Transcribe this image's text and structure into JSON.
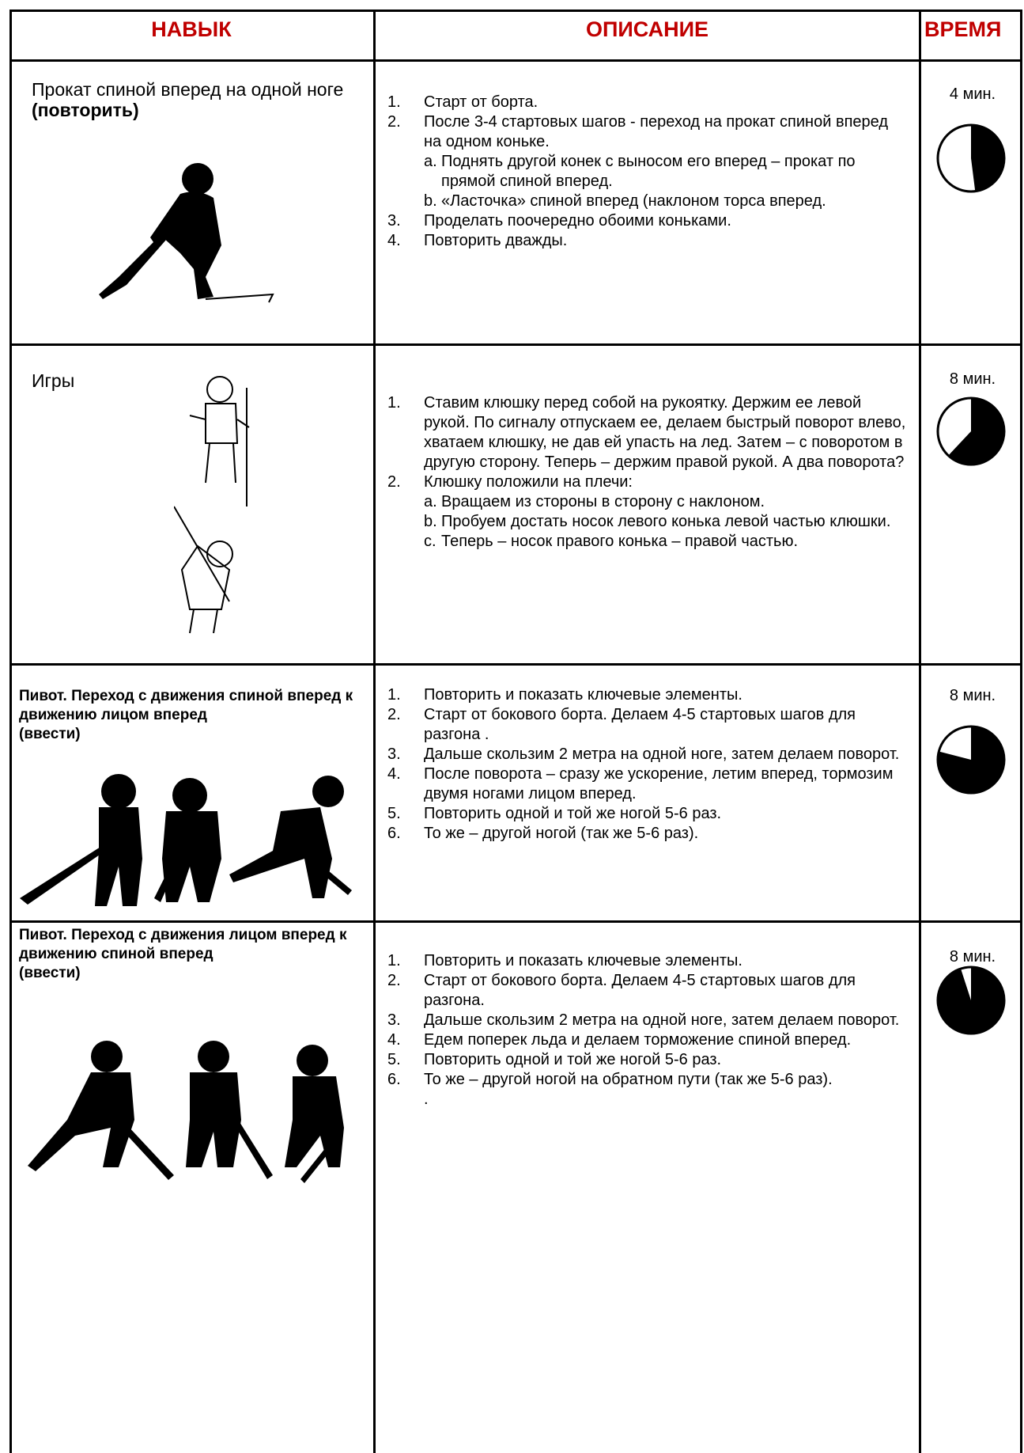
{
  "header": {
    "skill": "НАВЫК",
    "description": "ОПИСАНИЕ",
    "time": "ВРЕМЯ"
  },
  "rows": [
    {
      "skill": "Прокат спиной вперед на одной ноге",
      "skill_note": "(повторить)",
      "steps": [
        {
          "n": "1.",
          "text": "Старт от борта."
        },
        {
          "n": "2.",
          "text": "После 3-4 стартовых шагов - переход на прокат спиной вперед на одном коньке."
        },
        {
          "n": "a.",
          "text": "Поднять другой конек с выносом его вперед – прокат по прямой спиной вперед."
        },
        {
          "n": "b.",
          "text": "«Ласточка» спиной вперед (наклоном торса вперед."
        },
        {
          "n": "3.",
          "text": "Проделать поочередно обоими коньками."
        },
        {
          "n": "4.",
          "text": "Повторить дважды."
        }
      ],
      "time": "4 мин.",
      "clock": 0.48
    },
    {
      "skill": "Игры",
      "steps": [
        {
          "n": "1.",
          "text": "Ставим клюшку перед собой на рукоятку. Держим ее левой рукой. По сигналу отпускаем ее, делаем быстрый поворот влево, хватаем клюшку, не дав ей упасть на лед. Затем – с поворотом в другую сторону. Теперь – держим правой рукой. А два поворота?"
        },
        {
          "n": "2.",
          "text": "Клюшку положили на плечи:"
        },
        {
          "n": "a.",
          "text": "Вращаем из стороны в сторону с наклоном."
        },
        {
          "n": "b.",
          "text": "Пробуем достать носок левого конька левой частью клюшки."
        },
        {
          "n": "c.",
          "text": "Теперь – носок правого конька – правой частью."
        }
      ],
      "time": "8 мин.",
      "clock": 0.62
    },
    {
      "skill": "Пивот. Переход с движения спиной вперед к движению лицом вперед",
      "skill_note": "(ввести)",
      "steps": [
        {
          "n": "1.",
          "text": "Повторить и показать ключевые элементы."
        },
        {
          "n": "2.",
          "text": "Старт от бокового борта. Делаем 4-5 стартовых шагов для разгона ."
        },
        {
          "n": "3.",
          "text": "Дальше скользим 2 метра на одной ноге, затем делаем поворот."
        },
        {
          "n": "4.",
          "text": "После поворота – сразу же ускорение, летим вперед, тормозим двумя ногами лицом вперед."
        },
        {
          "n": "5.",
          "text": "Повторить одной и той же ногой 5-6 раз."
        },
        {
          "n": "6.",
          "text": "То же – другой ногой (так же 5-6 раз)."
        }
      ],
      "time": "8 мин.",
      "clock": 0.79
    },
    {
      "skill": "Пивот. Переход с движения лицом вперед к движению спиной вперед",
      "skill_note": "(ввести)",
      "steps": [
        {
          "n": "1.",
          "text": "Повторить и показать ключевые элементы."
        },
        {
          "n": "2.",
          "text": "Старт от бокового борта. Делаем 4-5 стартовых шагов для разгона."
        },
        {
          "n": "3.",
          "text": "Дальше скользим 2 метра на одной ноге, затем делаем поворот."
        },
        {
          "n": "4.",
          "text": "Едем поперек льда и делаем торможение спиной вперед."
        },
        {
          "n": "5.",
          "text": "Повторить одной и той же ногой 5-6 раз."
        },
        {
          "n": "6.",
          "text": "То же – другой ногой на обратном пути (так же 5-6 раз)."
        },
        {
          "text": "."
        }
      ],
      "time": "8 мин.",
      "clock": 0.95
    }
  ]
}
